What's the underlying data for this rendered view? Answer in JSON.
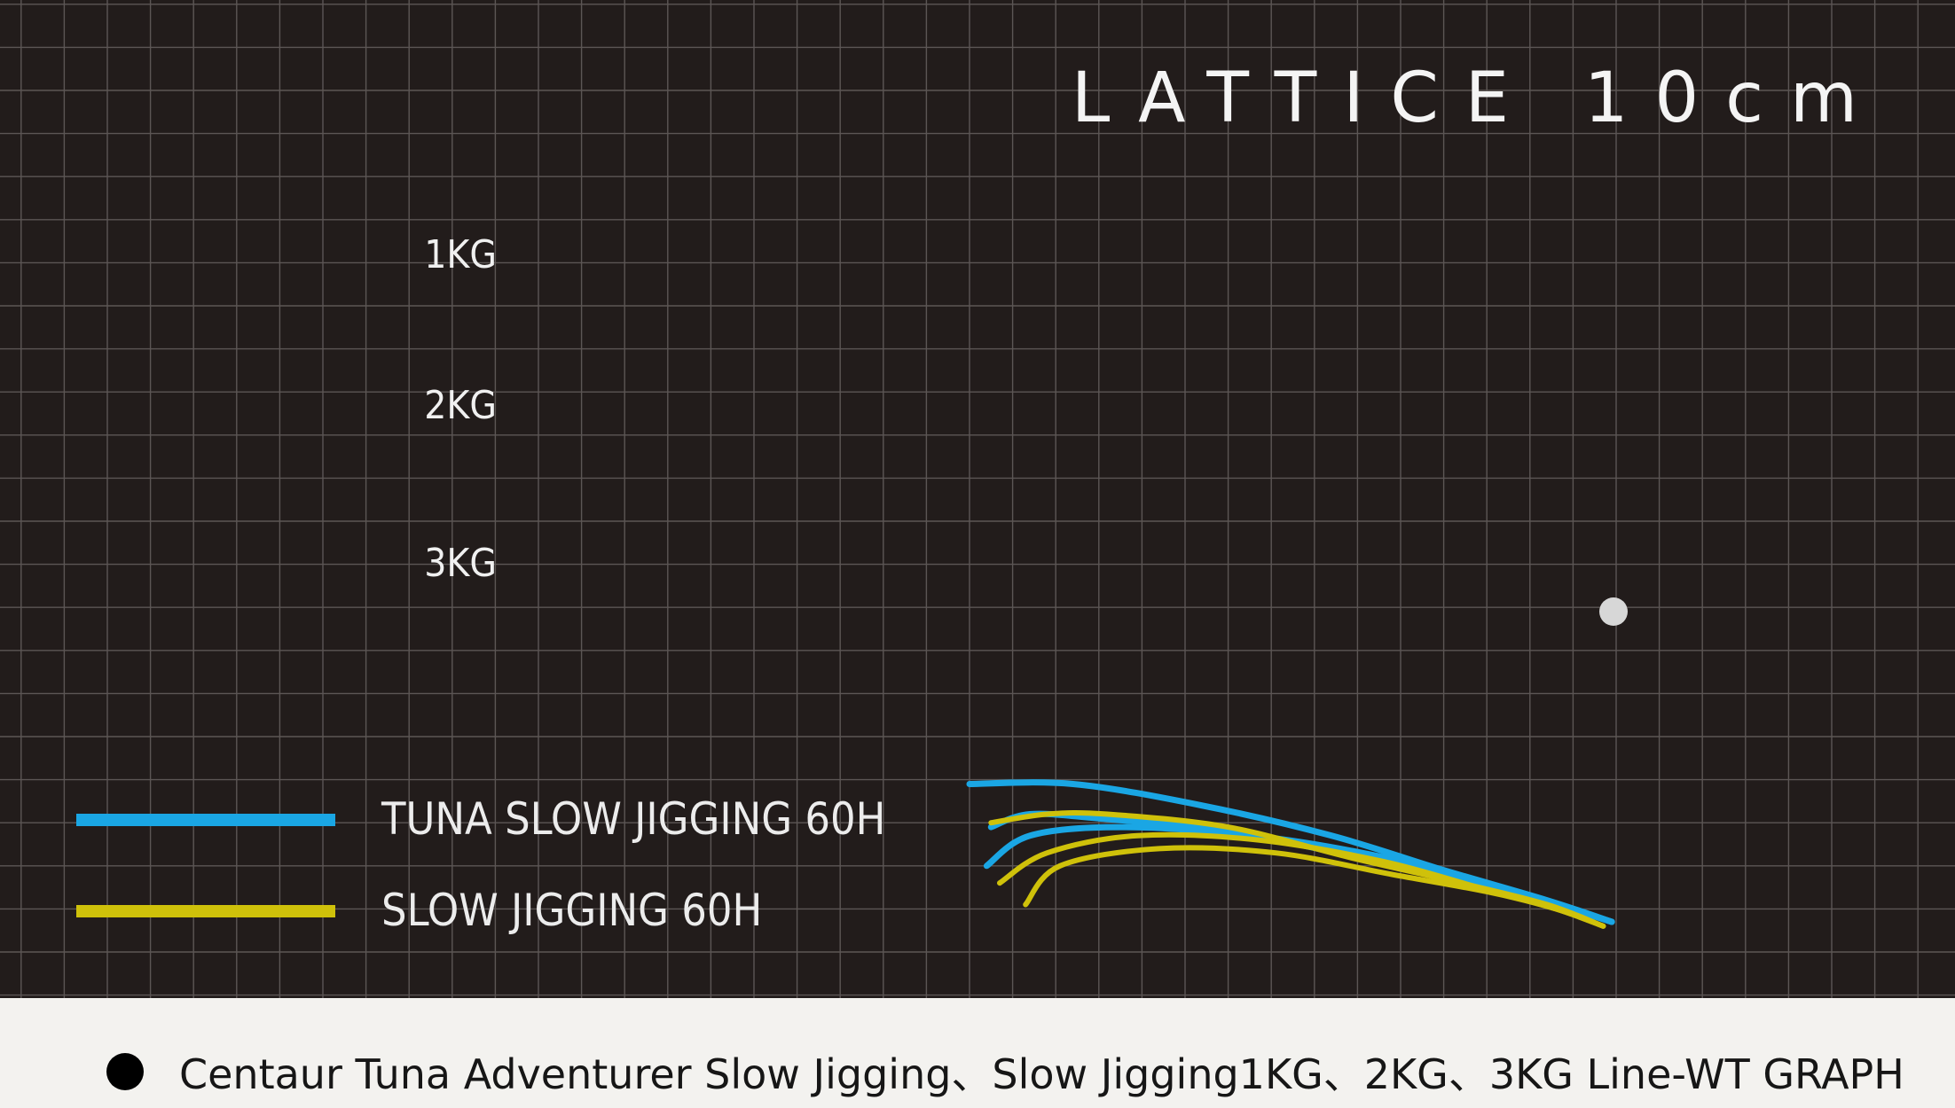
{
  "chart_data": {
    "type": "line",
    "title": "LATTICE 10cm",
    "load_labels": [
      "1KG",
      "2KG",
      "3KG"
    ],
    "series": [
      {
        "name": "TUNA SLOW JIGGING 60H",
        "color": "#1aa6e4",
        "curves": [
          {
            "load": "1KG",
            "points": [
              [
                -50,
                39
              ],
              [
                -26,
                39
              ],
              [
                4,
                34
              ],
              [
                34,
                27
              ],
              [
                60,
                19
              ],
              [
                84,
                12
              ],
              [
                99,
                7
              ]
            ]
          },
          {
            "load": "2KG",
            "points": [
              [
                -45,
                29
              ],
              [
                -36,
                32
              ],
              [
                -20,
                31
              ],
              [
                10,
                28
              ],
              [
                40,
                22
              ],
              [
                66,
                16
              ],
              [
                86,
                11
              ],
              [
                99,
                7
              ]
            ]
          },
          {
            "load": "3KG",
            "points": [
              [
                -46,
                20
              ],
              [
                -36,
                27
              ],
              [
                -15,
                29
              ],
              [
                16,
                27
              ],
              [
                46,
                22
              ],
              [
                68,
                16
              ],
              [
                86,
                11
              ],
              [
                99,
                7
              ]
            ]
          }
        ]
      },
      {
        "name": "SLOW JIGGING 60H",
        "color": "#cfc10a",
        "curves": [
          {
            "load": "1KG",
            "points": [
              [
                -45,
                30
              ],
              [
                -32,
                32
              ],
              [
                -18,
                32
              ],
              [
                10,
                29
              ],
              [
                38,
                22
              ],
              [
                64,
                16
              ],
              [
                84,
                11
              ],
              [
                97,
                6
              ]
            ]
          },
          {
            "load": "2KG",
            "points": [
              [
                -43,
                16
              ],
              [
                -32,
                23
              ],
              [
                -11,
                27
              ],
              [
                17,
                26
              ],
              [
                46,
                21
              ],
              [
                68,
                15
              ],
              [
                86,
                10
              ],
              [
                97,
                6
              ]
            ]
          },
          {
            "load": "3KG",
            "points": [
              [
                -37,
                11
              ],
              [
                -29,
                20
              ],
              [
                -6,
                24
              ],
              [
                21,
                23
              ],
              [
                48,
                18
              ],
              [
                70,
                14
              ],
              [
                86,
                10
              ],
              [
                97,
                6
              ]
            ]
          }
        ]
      }
    ],
    "grid": true,
    "legend": "bottom-left"
  },
  "caption": "Centaur Tuna Adventurer Slow Jigging、Slow Jigging1KG、2KG、3KG Line-WT GRAPH",
  "colors": {
    "background": "#221c1b",
    "grid": "#5c5655",
    "tip_marker": "#d7d7d7"
  }
}
